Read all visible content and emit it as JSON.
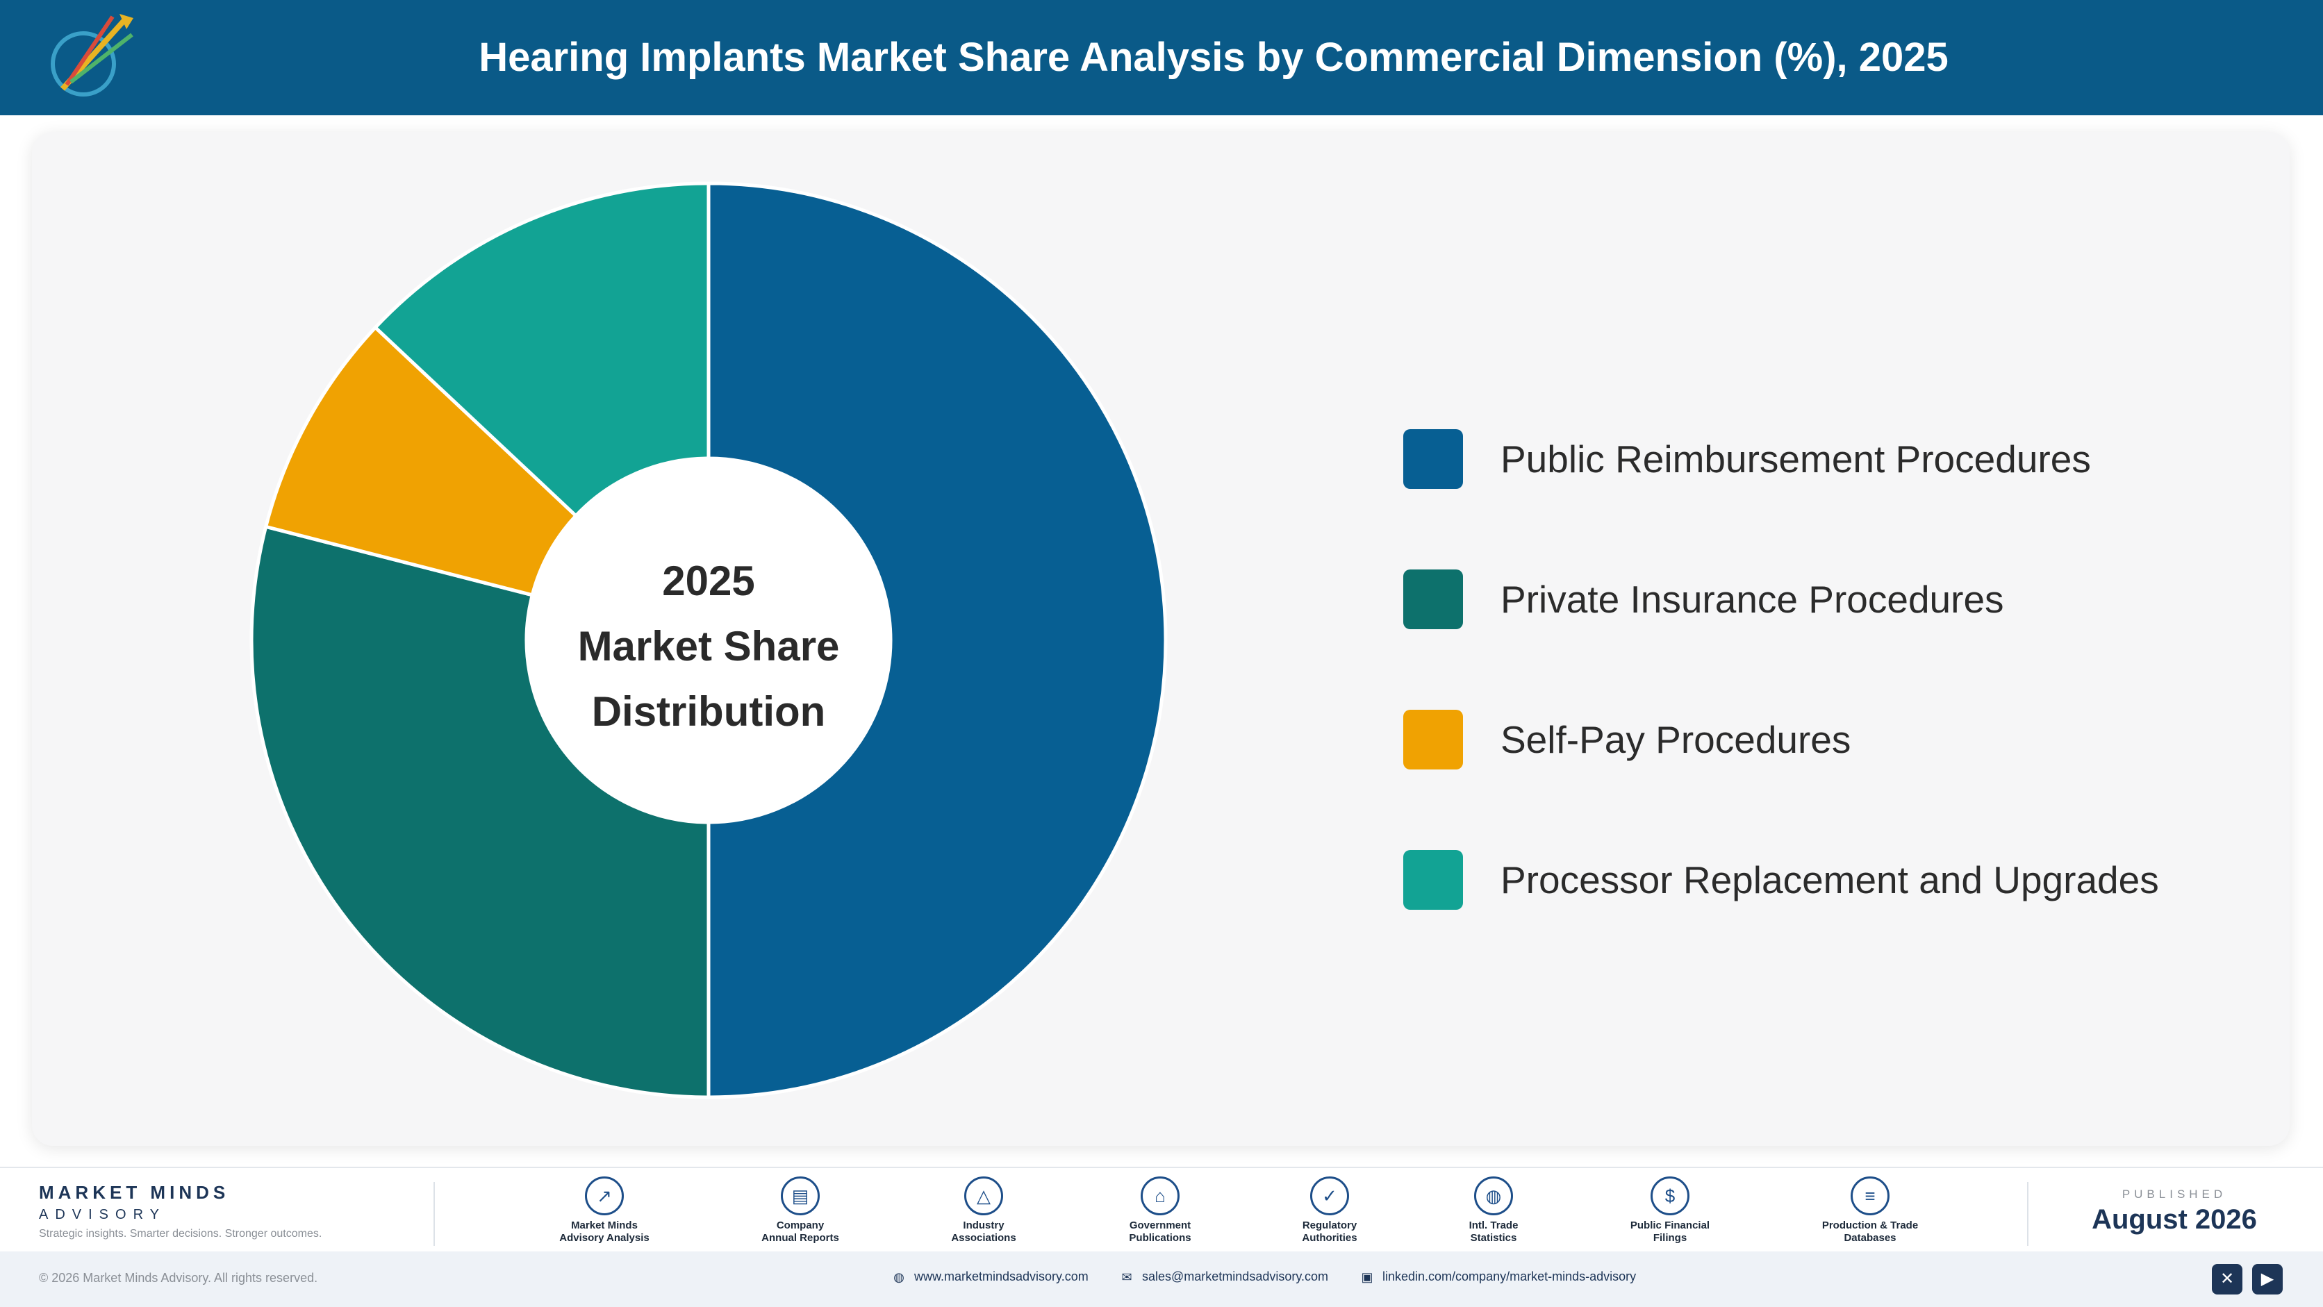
{
  "header": {
    "title": "Hearing Implants Market Share Analysis by Commercial Dimension (%), 2025"
  },
  "chart_data": {
    "type": "pie",
    "variant": "donut",
    "title": "Hearing Implants Market Share Analysis by Commercial Dimension (%), 2025",
    "center_label": [
      "2025",
      "Market Share",
      "Distribution"
    ],
    "categories": [
      "Public Reimbursement Procedures",
      "Private Insurance Procedures",
      "Self-Pay Procedures",
      "Processor Replacement and Upgrades"
    ],
    "values": [
      50,
      29,
      8,
      13
    ],
    "colors": [
      "#075f93",
      "#0d716c",
      "#f0a202",
      "#12a394"
    ],
    "legend_position": "right"
  },
  "footer": {
    "brand_name": "MARKET MINDS",
    "brand_sub": "ADVISORY",
    "tagline": "Strategic insights. Smarter decisions. Stronger outcomes.",
    "sources": [
      {
        "label": "Market Minds\nAdvisory Analysis",
        "icon": "trend-icon",
        "glyph": "↗"
      },
      {
        "label": "Company\nAnnual Reports",
        "icon": "document-icon",
        "glyph": "▤"
      },
      {
        "label": "Industry\nAssociations",
        "icon": "network-icon",
        "glyph": "△"
      },
      {
        "label": "Government\nPublications",
        "icon": "building-icon",
        "glyph": "⌂"
      },
      {
        "label": "Regulatory\nAuthorities",
        "icon": "shield-icon",
        "glyph": "✓"
      },
      {
        "label": "Intl. Trade\nStatistics",
        "icon": "globe-icon",
        "glyph": "◍"
      },
      {
        "label": "Public Financial\nFilings",
        "icon": "dollar-icon",
        "glyph": "$"
      },
      {
        "label": "Production & Trade\nDatabases",
        "icon": "database-icon",
        "glyph": "≡"
      }
    ],
    "published_label": "PUBLISHED",
    "published_date": "August 2026"
  },
  "bottombar": {
    "copyright": "© 2026 Market Minds Advisory. All rights reserved.",
    "website": "www.marketmindsadvisory.com",
    "email": "sales@marketmindsadvisory.com",
    "linkedin": "linkedin.com/company/market-minds-advisory"
  }
}
